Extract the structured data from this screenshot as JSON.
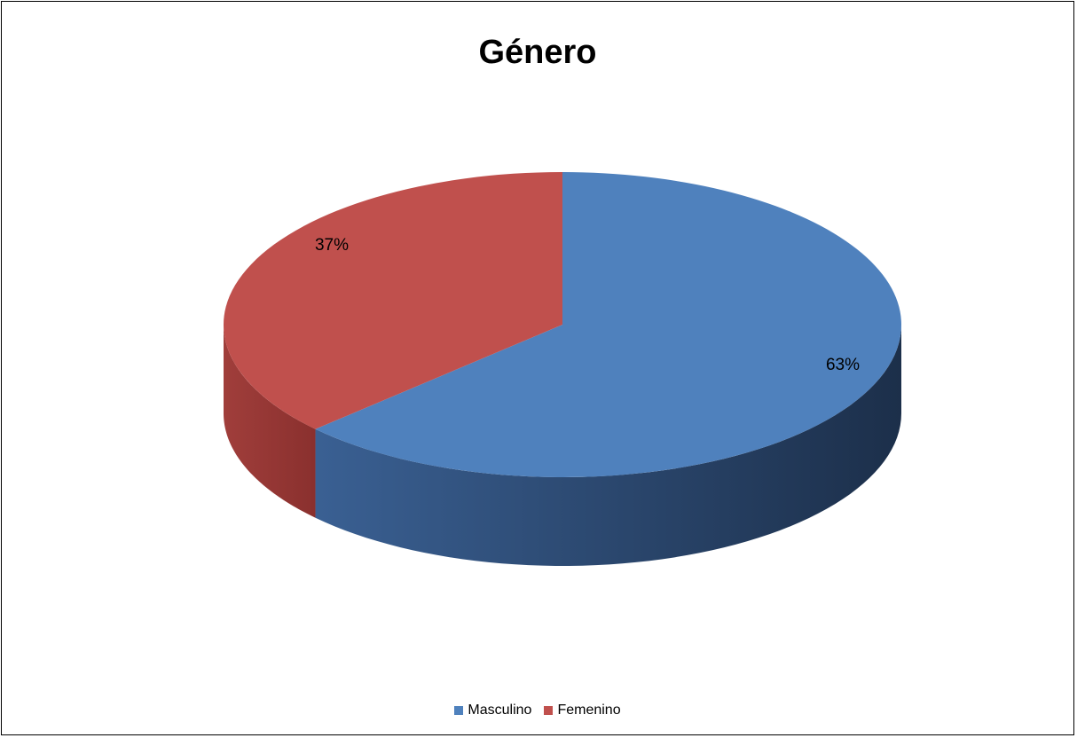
{
  "chart_data": {
    "type": "pie",
    "title": "Género",
    "categories": [
      "Masculino",
      "Femenino"
    ],
    "values": [
      63,
      37
    ],
    "data_labels": [
      "63%",
      "37%"
    ],
    "colors": [
      "#4f81bd",
      "#c0504d"
    ],
    "legend_position": "bottom",
    "three_d": true
  }
}
